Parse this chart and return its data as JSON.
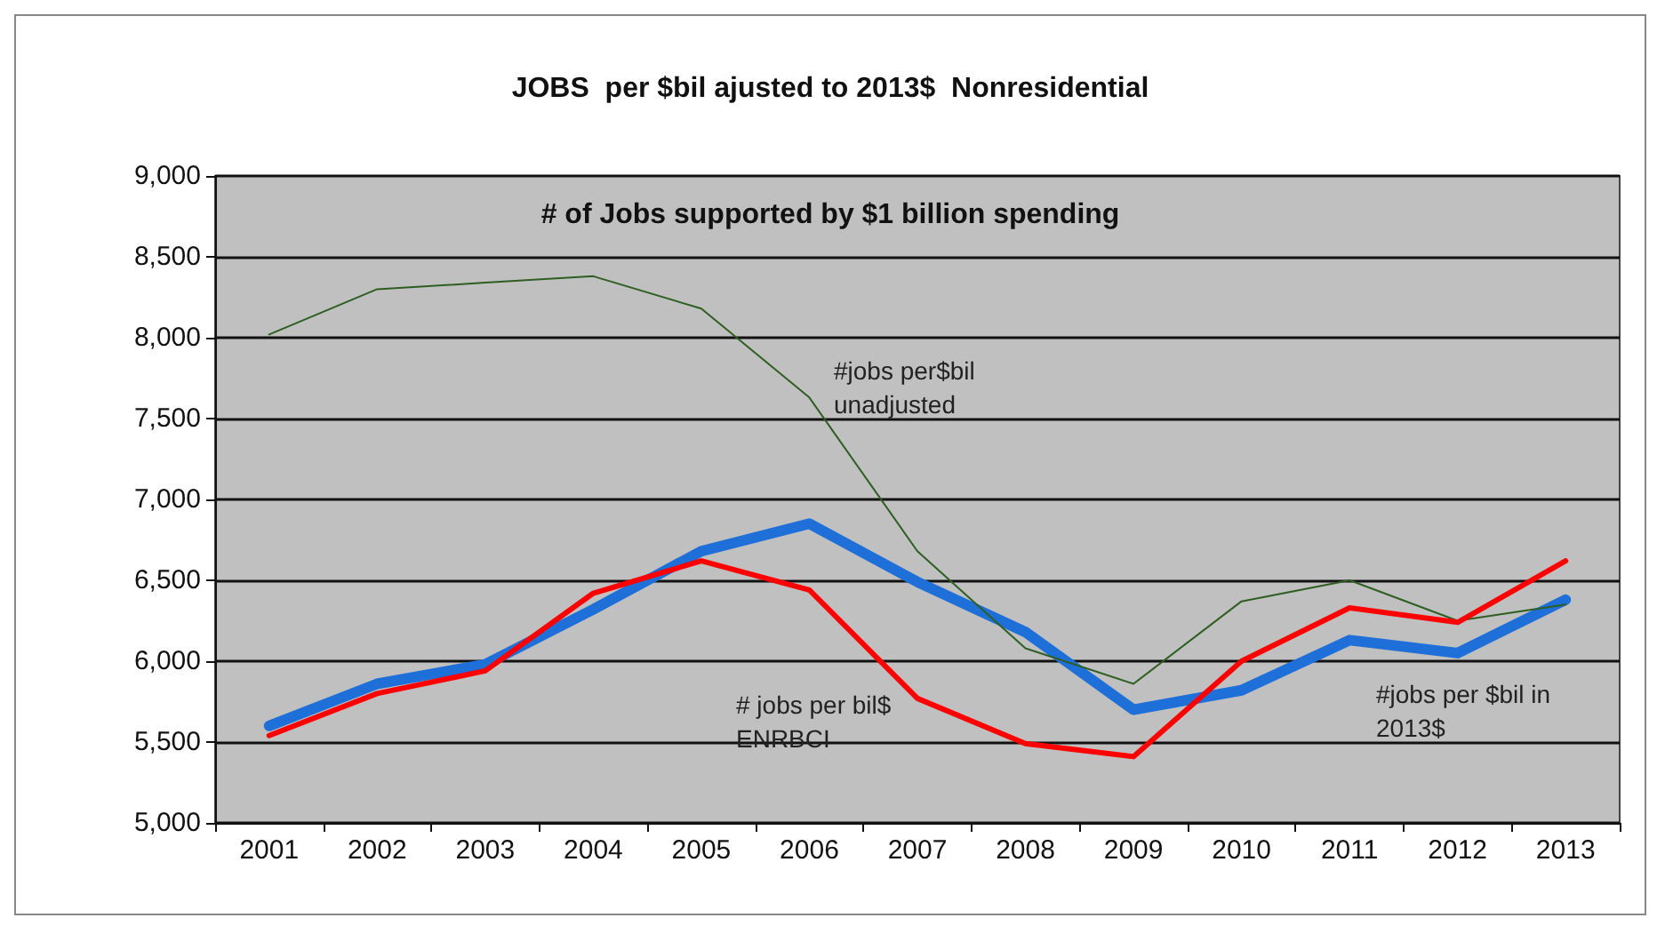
{
  "chart_data": {
    "type": "line",
    "title": "JOBS  per $bil ajusted to 2013$  Nonresidential",
    "categories": [
      "2001",
      "2002",
      "2003",
      "2004",
      "2005",
      "2006",
      "2007",
      "2008",
      "2009",
      "2010",
      "2011",
      "2012",
      "2013"
    ],
    "series": [
      {
        "name": "#jobs per$bil\nunadjusted",
        "color": "#2e5e22",
        "values": [
          8020,
          8300,
          8340,
          8380,
          8180,
          7630,
          6680,
          6080,
          5860,
          6370,
          6500,
          6250,
          6350
        ]
      },
      {
        "name": "#jobs per $bil in\n2013$",
        "color": "#1f6fd8",
        "values": [
          5600,
          5860,
          5980,
          6320,
          6680,
          6850,
          6490,
          6180,
          5700,
          5820,
          6130,
          6050,
          6380
        ]
      },
      {
        "name": "# jobs per bil$\nENRBCI",
        "color": "#ff0000",
        "values": [
          5540,
          5800,
          5940,
          6420,
          6620,
          6440,
          5770,
          5490,
          5410,
          6000,
          6330,
          6240,
          6620
        ]
      }
    ],
    "annotations": [
      "# of Jobs supported by $1 billion spending"
    ],
    "ylim": [
      5000,
      9000
    ],
    "yticks": [
      {
        "value": 5000,
        "label": "5,000"
      },
      {
        "value": 5500,
        "label": "5,500"
      },
      {
        "value": 6000,
        "label": "6,000"
      },
      {
        "value": 6500,
        "label": "6,500"
      },
      {
        "value": 7000,
        "label": "7,000"
      },
      {
        "value": 7500,
        "label": "7,500"
      },
      {
        "value": 8000,
        "label": "8,000"
      },
      {
        "value": 8500,
        "label": "8,500"
      },
      {
        "value": 9000,
        "label": "9,000"
      }
    ],
    "grid": "y",
    "legend": false,
    "marker": "none",
    "line_style": "solid"
  }
}
